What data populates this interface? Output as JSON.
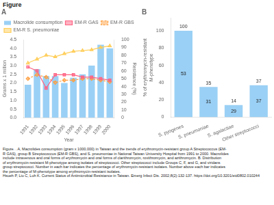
{
  "title": "Figure",
  "annotations": [
    "Figure.  . A, Macrolides consumption (gram x 1000,000) in Taiwan and the trends of erythromycin-resistant group A Streptococcus (EM-",
    "R GAS), group B Streptococcus (EM-R GBS), and S. pneumoniae in National Taiwan University Hospital from 1991 to 2000. Macrolides",
    "include intravenous and oral forms of erythromycin and oral forms of clarithromycin, roxithromycin, and azithromycin. B. Distribution",
    "of erythromycin-resistant M-phenotype among isolates of streptococci. Other streptococci include Groups C, F, and G, and viridans",
    "group streptococci. Number in each bar indicates the percentage of erythromycin-resistant isolates. Number above each bar indicates",
    "the percentage of M-phenotype among erythromycin-resistant isolates.",
    "Hsueh P, Liu C, Luh K. Current Status of Antimicrobial Resistance in Taiwan. Emerg Infect Dis. 2002;8(2):132-137. https://doi.org/10.3201/eid0802.010244"
  ],
  "chart_data": [
    {
      "type": "bar",
      "title": "A",
      "xlabel": "Year",
      "ylabel": "Grams x 1 million",
      "y2label": "Resistance (%)",
      "categories": [
        "1991",
        "1992",
        "1993",
        "1994",
        "1995",
        "1996",
        "1997",
        "1998",
        "1999",
        "2000"
      ],
      "series": [
        {
          "name": "Macrolide consumption",
          "values": [
            1.9,
            2.8,
            2.4,
            2.4,
            2.0,
            2.3,
            2.5,
            3.0,
            4.2,
            4.0
          ]
        },
        {
          "name": "EM-R GAS",
          "type": "line",
          "axis": "y2",
          "marker": "square",
          "line_style": "solid",
          "values": [
            65,
            60,
            38,
            55,
            55,
            55,
            52,
            52,
            50,
            48
          ]
        },
        {
          "name": "EM-R GBS",
          "type": "line",
          "axis": "y2",
          "marker": "diamond",
          "line_style": "dashed",
          "values": [
            50,
            55,
            52,
            45,
            48,
            48,
            50,
            50,
            48,
            46
          ]
        },
        {
          "name": "EM-R S. pneumoniae",
          "type": "line",
          "axis": "y2",
          "marker": "triangle",
          "line_style": "solid",
          "values": [
            70,
            75,
            80,
            78,
            82,
            85,
            86,
            87,
            90,
            92
          ]
        }
      ],
      "ylim": [
        0,
        4.5
      ],
      "yticks": [
        {
          "value": 0,
          "label": "0.0"
        },
        0.5,
        {
          "value": 1,
          "label": "1.0"
        },
        1.5,
        {
          "value": 2,
          "label": "2.0"
        },
        2.5,
        {
          "value": 3,
          "label": "3.0"
        },
        3.5,
        {
          "value": 4,
          "label": "4.0"
        },
        4.5
      ],
      "y2lim": [
        0,
        100
      ],
      "y2ticks": [
        0,
        10,
        20,
        30,
        40,
        50,
        60,
        70,
        80,
        90,
        100
      ],
      "grid": false,
      "legend": "top"
    },
    {
      "type": "bar",
      "title": "B",
      "ylabel": "% of erythromycin-resistant\nM-phenotype",
      "categories": [
        "S. pyogenes",
        "S. pneumoniae",
        "S. agalactiae",
        "Other streptococci"
      ],
      "values": [
        100,
        35,
        14,
        37
      ],
      "inner_values": [
        53,
        31,
        29,
        37
      ],
      "data_labels": true,
      "ylim": [
        0,
        115
      ],
      "yticks": [
        0,
        20,
        40,
        60,
        80,
        100
      ],
      "grid": false
    }
  ]
}
